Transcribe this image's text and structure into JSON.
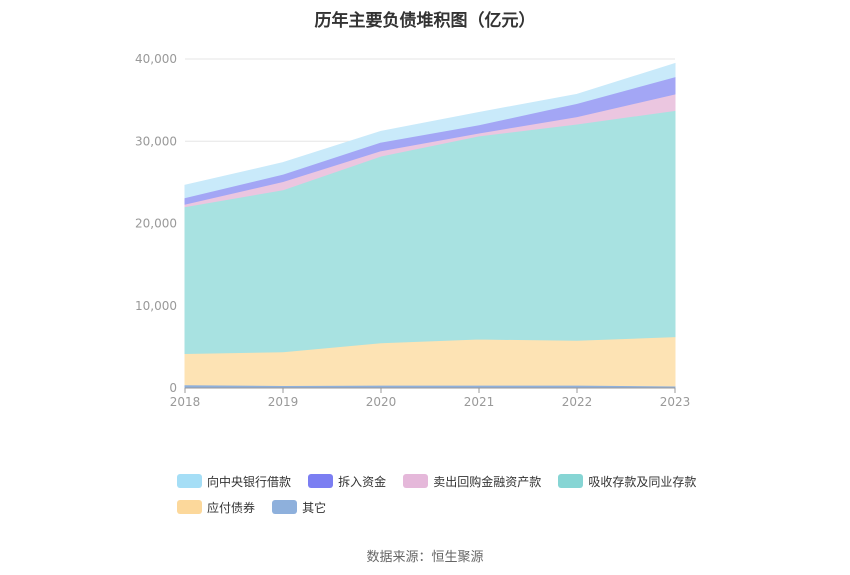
{
  "chart_data": {
    "type": "area",
    "stacked": true,
    "title": "历年主要负债堆积图（亿元）",
    "categories": [
      "2018",
      "2019",
      "2020",
      "2021",
      "2022",
      "2023"
    ],
    "ylim": [
      0,
      40000
    ],
    "yticks": [
      "0",
      "10,000",
      "20,000",
      "30,000",
      "40,000"
    ],
    "grid": true,
    "legend_position": "bottom",
    "series": [
      {
        "name": "其它",
        "color": "#8eb0dc",
        "values": [
          400,
          300,
          350,
          350,
          350,
          250
        ]
      },
      {
        "name": "应付债券",
        "color": "#fde3b4",
        "values": [
          3800,
          4100,
          5150,
          5600,
          5450,
          6000
        ]
      },
      {
        "name": "吸收存款及同业存款",
        "color": "#a8e2e1",
        "values": [
          17850,
          19700,
          22700,
          24700,
          26300,
          27500
        ]
      },
      {
        "name": "卖出回购金融资产款",
        "color": "#ebc6e0",
        "values": [
          300,
          1000,
          650,
          350,
          900,
          2000
        ]
      },
      {
        "name": "拆入资金",
        "color": "#a3a6f5",
        "values": [
          800,
          900,
          1050,
          1000,
          1600,
          2100
        ]
      },
      {
        "name": "向中央银行借款",
        "color": "#c9eafa",
        "values": [
          1500,
          1400,
          1300,
          1500,
          1100,
          1600
        ]
      }
    ]
  },
  "legend": [
    {
      "label": "向中央银行借款",
      "color": "#a5def6"
    },
    {
      "label": "拆入资金",
      "color": "#7b7ef2"
    },
    {
      "label": "卖出回购金融资产款",
      "color": "#e5b8da"
    },
    {
      "label": "吸收存款及同业存款",
      "color": "#86d5d4"
    },
    {
      "label": "应付债券",
      "color": "#fcd89b"
    },
    {
      "label": "其它",
      "color": "#8eb0dc"
    }
  ],
  "source": "数据来源：恒生聚源"
}
